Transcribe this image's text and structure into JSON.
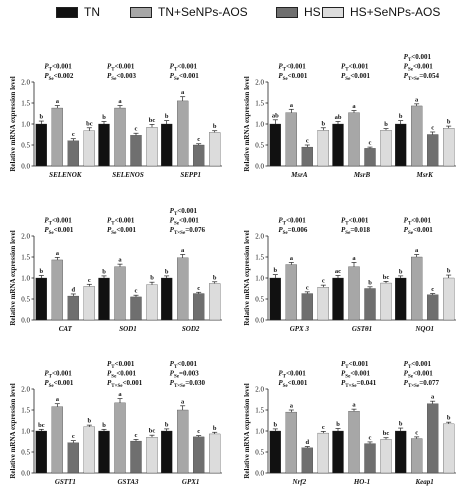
{
  "legend": [
    {
      "label": "TN",
      "color": "#111111"
    },
    {
      "label": "TN+SeNPs-AOS",
      "color": "#a7a7a7"
    },
    {
      "label": "HS",
      "color": "#6f6f6f"
    },
    {
      "label": "HS+SeNPs-AOS",
      "color": "#dcdcdc"
    }
  ],
  "chart_data": [
    {
      "type": "bar",
      "ylabel": "Relative mRNA expression level",
      "ylim": [
        0,
        2.0
      ],
      "yticks": [
        0,
        0.5,
        1.0,
        1.5,
        2.0
      ],
      "categories": [
        "SELENOK",
        "SELENOS",
        "SEPP1"
      ],
      "series": [
        {
          "name": "TN",
          "values": [
            1.0,
            1.0,
            1.0
          ],
          "errors": [
            0.07,
            0.06,
            0.08
          ]
        },
        {
          "name": "TN+SeNPs-AOS",
          "values": [
            1.38,
            1.38,
            1.55
          ],
          "errors": [
            0.06,
            0.06,
            0.1
          ]
        },
        {
          "name": "HS",
          "values": [
            0.6,
            0.73,
            0.5
          ],
          "errors": [
            0.05,
            0.05,
            0.03
          ]
        },
        {
          "name": "HS+SeNPs-AOS",
          "values": [
            0.84,
            0.92,
            0.8
          ],
          "errors": [
            0.07,
            0.07,
            0.04
          ]
        }
      ],
      "letters": [
        [
          "b",
          "a",
          "c",
          "bc"
        ],
        [
          "b",
          "a",
          "c",
          "bc"
        ],
        [
          "b",
          "a",
          "c",
          "b"
        ]
      ],
      "stats": [
        [
          "PT<0.001",
          "PSe<0.002"
        ],
        [
          "PT<0.001",
          "PSe<0.003"
        ],
        [
          "PT<0.001",
          "PSe<0.001"
        ]
      ]
    },
    {
      "type": "bar",
      "ylabel": "Relative mRNA expression level",
      "ylim": [
        0,
        2.0
      ],
      "yticks": [
        0,
        0.5,
        1.0,
        1.5,
        2.0
      ],
      "categories": [
        "MsrA",
        "MsrB",
        "MsrK"
      ],
      "series": [
        {
          "name": "TN",
          "values": [
            1.0,
            1.0,
            1.0
          ],
          "errors": [
            0.1,
            0.06,
            0.08
          ]
        },
        {
          "name": "TN+SeNPs-AOS",
          "values": [
            1.27,
            1.27,
            1.43
          ],
          "errors": [
            0.08,
            0.05,
            0.05
          ]
        },
        {
          "name": "HS",
          "values": [
            0.45,
            0.42,
            0.75
          ],
          "errors": [
            0.05,
            0.03,
            0.06
          ]
        },
        {
          "name": "HS+SeNPs-AOS",
          "values": [
            0.85,
            0.85,
            0.9
          ],
          "errors": [
            0.06,
            0.04,
            0.05
          ]
        }
      ],
      "letters": [
        [
          "ab",
          "a",
          "c",
          "b"
        ],
        [
          "ab",
          "a",
          "c",
          "b"
        ],
        [
          "b",
          "a",
          "c",
          "b"
        ]
      ],
      "stats": [
        [
          "PT<0.001",
          "PSe<0.001"
        ],
        [
          "PT<0.001",
          "PSe<0.001"
        ],
        [
          "PT<0.001",
          "PSe<0.001",
          "PT×Se=0.054"
        ]
      ]
    },
    {
      "type": "bar",
      "ylabel": "Relative mRNA expression level",
      "ylim": [
        0,
        2.0
      ],
      "yticks": [
        0,
        0.5,
        1.0,
        1.5,
        2.0
      ],
      "categories": [
        "CAT",
        "SOD1",
        "SOD2"
      ],
      "series": [
        {
          "name": "TN",
          "values": [
            1.0,
            1.0,
            1.0
          ],
          "errors": [
            0.06,
            0.05,
            0.05
          ]
        },
        {
          "name": "TN+SeNPs-AOS",
          "values": [
            1.43,
            1.27,
            1.48
          ],
          "errors": [
            0.06,
            0.06,
            0.08
          ]
        },
        {
          "name": "HS",
          "values": [
            0.57,
            0.55,
            0.63
          ],
          "errors": [
            0.05,
            0.04,
            0.03
          ]
        },
        {
          "name": "HS+SeNPs-AOS",
          "values": [
            0.8,
            0.84,
            0.87
          ],
          "errors": [
            0.05,
            0.06,
            0.04
          ]
        }
      ],
      "letters": [
        [
          "b",
          "a",
          "d",
          "c"
        ],
        [
          "b",
          "a",
          "c",
          "b"
        ],
        [
          "b",
          "a",
          "c",
          "b"
        ]
      ],
      "stats": [
        [
          "PT<0.001",
          "PSe<0.001"
        ],
        [
          "PT<0.001",
          "PSe<0.001"
        ],
        [
          "PT<0.001",
          "PSe<0.001",
          "PT×Se=0.076"
        ]
      ]
    },
    {
      "type": "bar",
      "ylabel": "Relative mRNA expression level",
      "ylim": [
        0,
        2.0
      ],
      "yticks": [
        0,
        0.5,
        1.0,
        1.5,
        2.0
      ],
      "categories": [
        "GPX 3",
        "GSTθ1",
        "NQO1"
      ],
      "series": [
        {
          "name": "TN",
          "values": [
            1.0,
            1.0,
            1.0
          ],
          "errors": [
            0.08,
            0.06,
            0.05
          ]
        },
        {
          "name": "TN+SeNPs-AOS",
          "values": [
            1.32,
            1.27,
            1.5
          ],
          "errors": [
            0.05,
            0.1,
            0.06
          ]
        },
        {
          "name": "HS",
          "values": [
            0.63,
            0.75,
            0.6
          ],
          "errors": [
            0.04,
            0.04,
            0.03
          ]
        },
        {
          "name": "HS+SeNPs-AOS",
          "values": [
            0.78,
            0.88,
            1.0
          ],
          "errors": [
            0.05,
            0.04,
            0.07
          ]
        }
      ],
      "letters": [
        [
          "b",
          "a",
          "c",
          "c"
        ],
        [
          "ac",
          "a",
          "b",
          "bc"
        ],
        [
          "b",
          "a",
          "c",
          "b"
        ]
      ],
      "stats": [
        [
          "PT<0.001",
          "PSe=0.006"
        ],
        [
          "PT<0.001",
          "PSe=0.018"
        ],
        [
          "PT<0.001",
          "PSe<0.001"
        ]
      ]
    },
    {
      "type": "bar",
      "ylabel": "Relative mRNA expression level",
      "ylim": [
        0,
        2.0
      ],
      "yticks": [
        0,
        0.5,
        1.0,
        1.5,
        2.0
      ],
      "categories": [
        "GSTT1",
        "GSTA3",
        "GPX1"
      ],
      "series": [
        {
          "name": "TN",
          "values": [
            1.0,
            1.0,
            1.0
          ],
          "errors": [
            0.04,
            0.04,
            0.05
          ]
        },
        {
          "name": "TN+SeNPs-AOS",
          "values": [
            1.58,
            1.67,
            1.5
          ],
          "errors": [
            0.07,
            0.1,
            0.1
          ]
        },
        {
          "name": "HS",
          "values": [
            0.72,
            0.76,
            0.86
          ],
          "errors": [
            0.05,
            0.04,
            0.03
          ]
        },
        {
          "name": "HS+SeNPs-AOS",
          "values": [
            1.1,
            0.85,
            0.93
          ],
          "errors": [
            0.04,
            0.05,
            0.04
          ]
        }
      ],
      "letters": [
        [
          "bc",
          "a",
          "c",
          "b"
        ],
        [
          "b",
          "a",
          "c",
          "bc"
        ],
        [
          "b",
          "a",
          "c",
          "b"
        ]
      ],
      "stats": [
        [
          "PT<0.001",
          "PSe<0.001"
        ],
        [
          "PT<0.001",
          "PSe<0.001",
          "PT×Se<0.001"
        ],
        [
          "PT<0.001",
          "PSe=0.003",
          "PT×Se=0.030"
        ]
      ]
    },
    {
      "type": "bar",
      "ylabel": "Relative mRNA expression level",
      "ylim": [
        0,
        2.0
      ],
      "yticks": [
        0,
        0.5,
        1.0,
        1.5,
        2.0
      ],
      "categories": [
        "Nrf2",
        "HO-1",
        "Keap1"
      ],
      "series": [
        {
          "name": "TN",
          "values": [
            1.0,
            1.0,
            1.0
          ],
          "errors": [
            0.05,
            0.06,
            0.07
          ]
        },
        {
          "name": "TN+SeNPs-AOS",
          "values": [
            1.45,
            1.47,
            0.82
          ],
          "errors": [
            0.05,
            0.05,
            0.04
          ]
        },
        {
          "name": "HS",
          "values": [
            0.6,
            0.7,
            1.65
          ],
          "errors": [
            0.03,
            0.04,
            0.06
          ]
        },
        {
          "name": "HS+SeNPs-AOS",
          "values": [
            0.95,
            0.8,
            1.17
          ],
          "errors": [
            0.04,
            0.04,
            0.04
          ]
        }
      ],
      "letters": [
        [
          "b",
          "a",
          "d",
          "c"
        ],
        [
          "b",
          "a",
          "c",
          "bc"
        ],
        [
          "b",
          "c",
          "a",
          "b"
        ]
      ],
      "stats": [
        [
          "PT<0.001",
          "PSe<0.001"
        ],
        [
          "PT<0.001",
          "PSe<0.001",
          "PT×Se=0.041"
        ],
        [
          "PT<0.001",
          "PSe<0.001",
          "PT×Se=0.077"
        ]
      ]
    }
  ]
}
